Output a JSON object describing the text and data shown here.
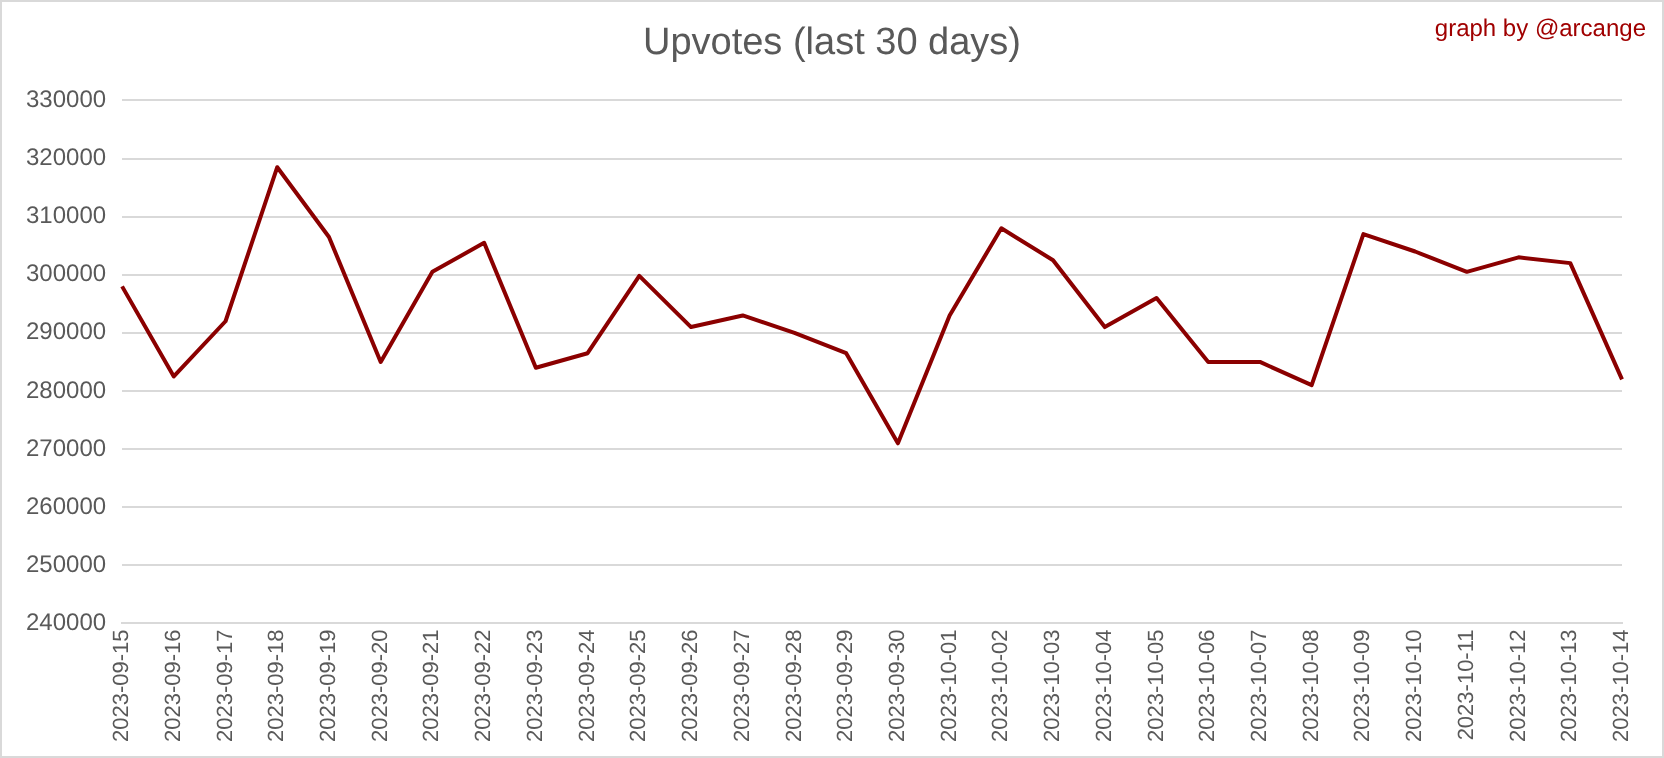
{
  "chart_data": {
    "type": "line",
    "title": "Upvotes (last 30 days)",
    "annotations": [
      "graph by @arcange"
    ],
    "categories": [
      "2023-09-15",
      "2023-09-16",
      "2023-09-17",
      "2023-09-18",
      "2023-09-19",
      "2023-09-20",
      "2023-09-21",
      "2023-09-22",
      "2023-09-23",
      "2023-09-24",
      "2023-09-25",
      "2023-09-26",
      "2023-09-27",
      "2023-09-28",
      "2023-09-29",
      "2023-09-30",
      "2023-10-01",
      "2023-10-02",
      "2023-10-03",
      "2023-10-04",
      "2023-10-05",
      "2023-10-06",
      "2023-10-07",
      "2023-10-08",
      "2023-10-09",
      "2023-10-10",
      "2023-10-11",
      "2023-10-12",
      "2023-10-13",
      "2023-10-14"
    ],
    "values": [
      298000,
      282500,
      292000,
      318500,
      306500,
      285000,
      300500,
      305500,
      284000,
      286500,
      299800,
      291000,
      293000,
      290000,
      286500,
      271000,
      293000,
      308000,
      302500,
      291000,
      296000,
      285000,
      285000,
      281000,
      307000,
      304000,
      300500,
      303000,
      302000,
      282000
    ],
    "color": "#8b0000",
    "ylim": [
      240000,
      330000
    ],
    "yticks": [
      240000,
      250000,
      260000,
      270000,
      280000,
      290000,
      300000,
      310000,
      320000,
      330000
    ],
    "grid": "y",
    "legend": false,
    "marker": "none",
    "line_style": "solid"
  }
}
